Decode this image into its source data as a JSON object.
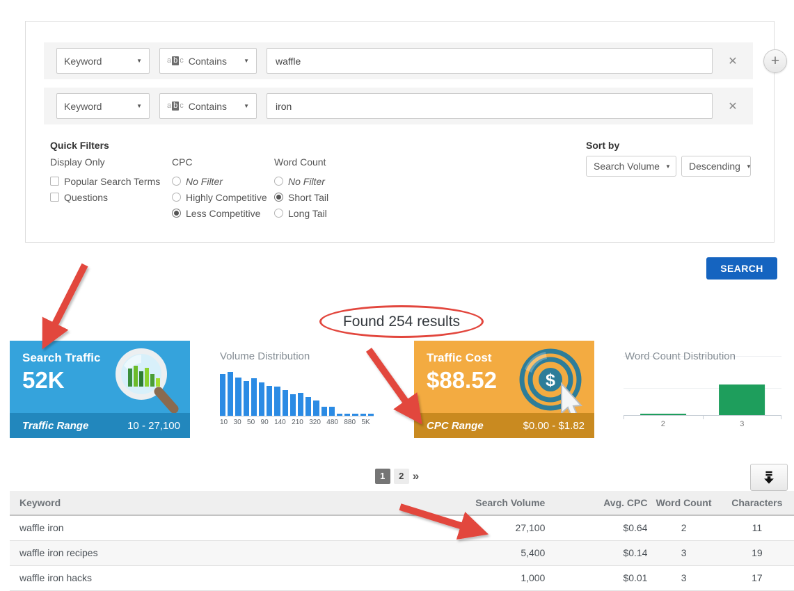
{
  "filter_panel": {
    "rows": [
      {
        "field": "Keyword",
        "operator": "Contains",
        "value": "waffle"
      },
      {
        "field": "Keyword",
        "operator": "Contains",
        "value": "iron"
      }
    ],
    "remove_label": "✕",
    "add_label": "+"
  },
  "quick_filters": {
    "title": "Quick Filters",
    "groups": [
      {
        "label": "Display Only",
        "type": "checkbox",
        "options": [
          {
            "label": "Popular Search Terms",
            "checked": false
          },
          {
            "label": "Questions",
            "checked": false
          }
        ]
      },
      {
        "label": "CPC",
        "type": "radio",
        "options": [
          {
            "label": "No Filter",
            "selected": false,
            "italic": true
          },
          {
            "label": "Highly Competitive",
            "selected": false
          },
          {
            "label": "Less Competitive",
            "selected": true
          }
        ]
      },
      {
        "label": "Word Count",
        "type": "radio",
        "options": [
          {
            "label": "No Filter",
            "selected": false,
            "italic": true
          },
          {
            "label": "Short Tail",
            "selected": true
          },
          {
            "label": "Long Tail",
            "selected": false
          }
        ]
      }
    ]
  },
  "sort_by": {
    "title": "Sort by",
    "field": "Search Volume",
    "direction": "Descending"
  },
  "search_button_label": "SEARCH",
  "results_badge": "Found 254 results",
  "cards": {
    "search_traffic": {
      "title": "Search Traffic",
      "value": "52K",
      "footer_label": "Traffic Range",
      "footer_value": "10 - 27,100",
      "bg": "#35a3dc",
      "footer_bg": "#2287bd",
      "icon": "magnifier-bar-chart"
    },
    "traffic_cost": {
      "title": "Traffic Cost",
      "value": "$88.52",
      "footer_label": "CPC Range",
      "footer_value": "$0.00 - $1.82",
      "bg": "#f3ab41",
      "footer_bg": "#c98a20",
      "icon": "dollar-target-cursor"
    }
  },
  "chart_data": [
    {
      "type": "bar",
      "title": "Volume Distribution",
      "bar_color": "#2b8be4",
      "values": [
        95,
        100,
        88,
        80,
        86,
        77,
        68,
        67,
        59,
        49,
        52,
        43,
        35,
        20,
        20,
        4,
        4,
        4,
        4,
        4
      ],
      "x_tick_labels": [
        "10",
        "30",
        "50",
        "90",
        "140",
        "210",
        "320",
        "480",
        "880",
        "5K"
      ],
      "tick_rule": "label under every other bar starting with first",
      "ylim": [
        0,
        100
      ],
      "grid": false
    },
    {
      "type": "bar",
      "title": "Word Count Distribution",
      "bar_color": "#1e9e5c",
      "categories": [
        "2",
        "3"
      ],
      "values": [
        4,
        250
      ],
      "ylim": [
        0,
        490
      ],
      "grid": true
    }
  ],
  "pagination": {
    "pages": [
      {
        "label": "1",
        "active": true
      },
      {
        "label": "2",
        "active": false
      }
    ],
    "next_label": "»"
  },
  "table": {
    "columns": [
      {
        "label": "Keyword",
        "align": "left"
      },
      {
        "label": "Search Volume",
        "align": "right"
      },
      {
        "label": "Avg. CPC",
        "align": "right"
      },
      {
        "label": "Word Count",
        "align": "center"
      },
      {
        "label": "Characters",
        "align": "center"
      }
    ],
    "rows": [
      {
        "keyword": "waffle iron",
        "search_volume": "27,100",
        "avg_cpc": "$0.64",
        "word_count": "2",
        "characters": "11"
      },
      {
        "keyword": "waffle iron recipes",
        "search_volume": "5,400",
        "avg_cpc": "$0.14",
        "word_count": "3",
        "characters": "19"
      },
      {
        "keyword": "waffle iron hacks",
        "search_volume": "1,000",
        "avg_cpc": "$0.01",
        "word_count": "3",
        "characters": "17"
      }
    ]
  },
  "annotations": {
    "color": "#e2463d",
    "arrows": [
      {
        "points_at": "search-traffic-card"
      },
      {
        "points_at": "cpc-range-footer"
      },
      {
        "points_at": "search-volume-27100"
      }
    ],
    "oval_around": "results-badge"
  }
}
